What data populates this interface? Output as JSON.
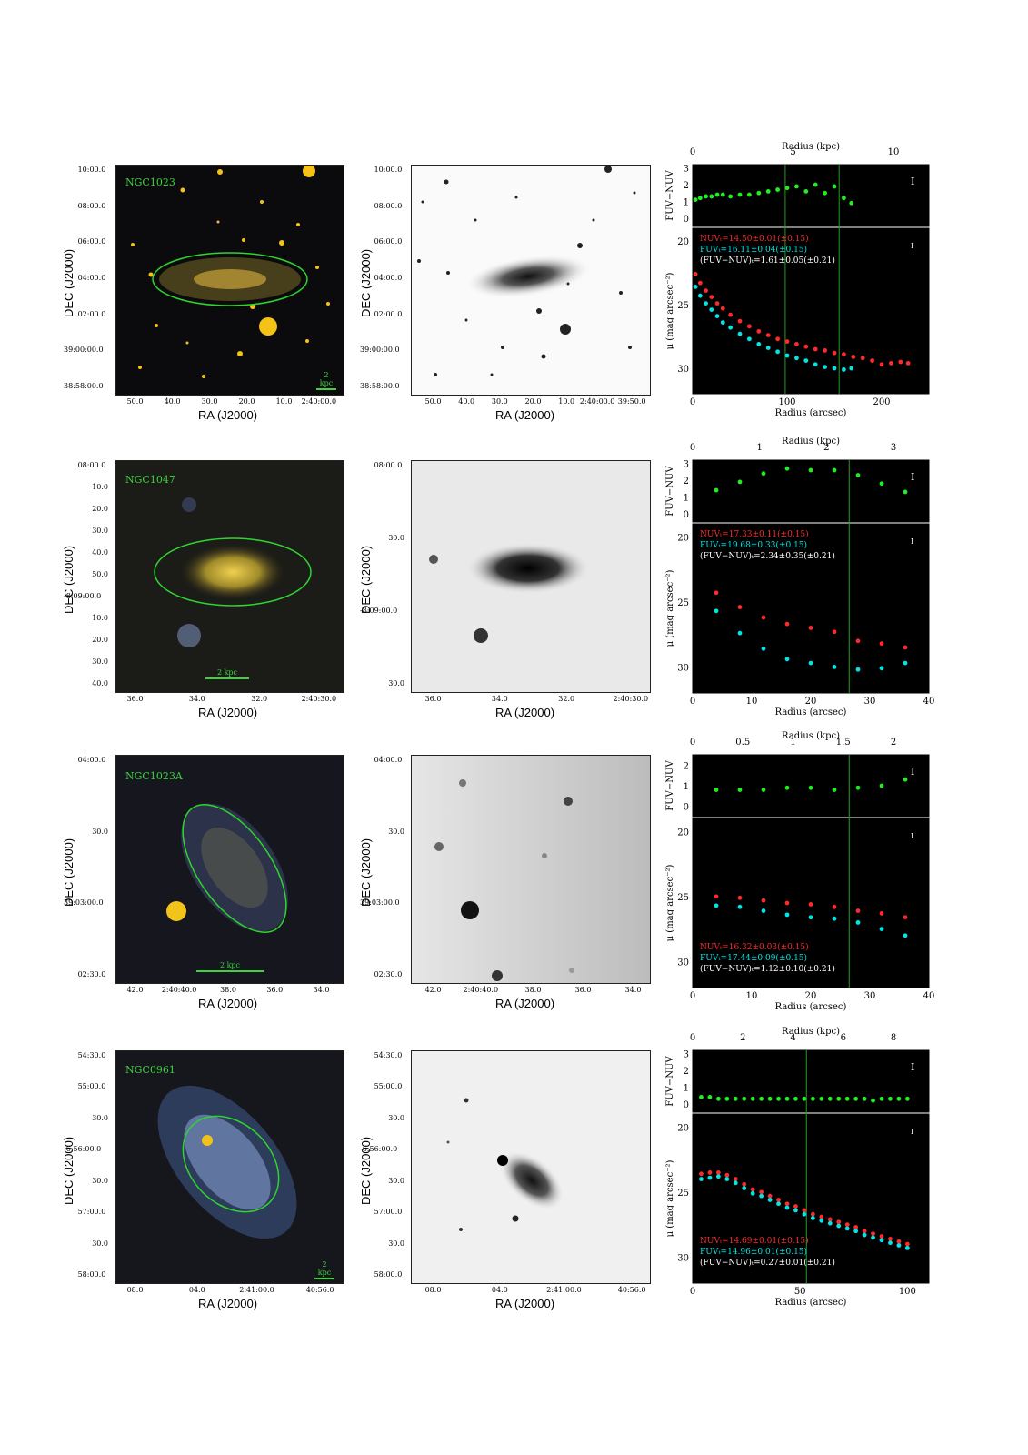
{
  "ra_label": "RA (J2000)",
  "dec_label": "DEC (J2000)",
  "color_label": "FUV−NUV",
  "mu_label": "μ (mag arcsec⁻²)",
  "radius_arcsec_label": "Radius (arcsec)",
  "radius_kpc_label": "Radius (kpc)",
  "galaxies": [
    {
      "name": "NGC1023",
      "scale_label": "2 kpc",
      "dec_ticks": [
        "10:00.0",
        "08:00.0",
        "06:00.0",
        "04:00.0",
        "02:00.0",
        "39:00:00.0",
        "38:58:00.0"
      ],
      "ra_ticks": [
        "50.0",
        "40.0",
        "30.0",
        "20.0",
        "10.0",
        "2:40:00.0"
      ],
      "ra_ticks_gray": [
        "50.0",
        "40.0",
        "30.0",
        "20.0",
        "10.0",
        "2:40:00.0",
        "39:50.0"
      ],
      "nuv_text": "NUVₜ=14.50±0.01(±0.15)",
      "fuv_text": "FUVₜ=16.11±0.04(±0.15)",
      "color_text": "(FUV−NUV)ₜ=1.61±0.05(±0.21)",
      "kpc_ticks": [
        "0",
        "5",
        "10"
      ],
      "arcsec_ticks": [
        "0",
        "100",
        "200"
      ],
      "mu_ticks": [
        "20",
        "25",
        "30"
      ],
      "col_ticks": [
        "3",
        "2",
        "1",
        "0"
      ]
    },
    {
      "name": "NGC1047",
      "scale_label": "2 kpc",
      "dec_ticks": [
        "08:00.0",
        "10.0",
        "20.0",
        "30.0",
        "40.0",
        "50.0",
        "-8:09:00.0",
        "10.0",
        "20.0",
        "30.0",
        "40.0"
      ],
      "ra_ticks": [
        "36.0",
        "34.0",
        "32.0",
        "2:40:30.0"
      ],
      "dec_ticks_gray": [
        "08:00.0",
        "30.0",
        "-8:09:00.0",
        "30.0"
      ],
      "ra_ticks_gray": [
        "36.0",
        "34.0",
        "32.0",
        "2:40:30.0"
      ],
      "nuv_text": "NUVₜ=17.33±0.11(±0.15)",
      "fuv_text": "FUVₜ=19.68±0.33(±0.15)",
      "color_text": "(FUV−NUV)ₜ=2.34±0.35(±0.21)",
      "kpc_ticks": [
        "0",
        "1",
        "2",
        "3"
      ],
      "arcsec_ticks": [
        "0",
        "10",
        "20",
        "30",
        "40"
      ],
      "mu_ticks": [
        "20",
        "25",
        "30"
      ],
      "col_ticks": [
        "3",
        "2",
        "1",
        "0"
      ]
    },
    {
      "name": "NGC1023A",
      "scale_label": "2 kpc",
      "dec_ticks": [
        "04:00.0",
        "30.0",
        "39:03:00.0",
        "02:30.0"
      ],
      "ra_ticks": [
        "42.0",
        "2:40:40.0",
        "38.0",
        "36.0",
        "34.0"
      ],
      "nuv_text": "NUVₜ=16.32±0.03(±0.15)",
      "fuv_text": "FUVₜ=17.44±0.09(±0.15)",
      "color_text": "(FUV−NUV)ₜ=1.12±0.10(±0.21)",
      "kpc_ticks": [
        "0",
        "0.5",
        "1",
        "1.5",
        "2"
      ],
      "arcsec_ticks": [
        "0",
        "10",
        "20",
        "30",
        "40"
      ],
      "mu_ticks": [
        "20",
        "25",
        "30"
      ],
      "col_ticks": [
        "2",
        "1",
        "0"
      ]
    },
    {
      "name": "NGC0961",
      "scale_label": "2 kpc",
      "dec_ticks": [
        "54:30.0",
        "55:00.0",
        "30.0",
        "-6:56:00.0",
        "30.0",
        "57:00.0",
        "30.0",
        "58:00.0"
      ],
      "ra_ticks": [
        "08.0",
        "04.0",
        "2:41:00.0",
        "40:56.0"
      ],
      "nuv_text": "NUVₜ=14.69±0.01(±0.15)",
      "fuv_text": "FUVₜ=14.96±0.01(±0.15)",
      "color_text": "(FUV−NUV)ₜ=0.27±0.01(±0.21)",
      "kpc_ticks": [
        "0",
        "2",
        "4",
        "6",
        "8"
      ],
      "arcsec_ticks": [
        "0",
        "50",
        "100"
      ],
      "mu_ticks": [
        "20",
        "25",
        "30"
      ],
      "col_ticks": [
        "3",
        "2",
        "1",
        "0"
      ]
    }
  ],
  "chart_data": [
    {
      "type": "scatter",
      "galaxy": "NGC1023",
      "xlabel": "Radius (arcsec)",
      "x2label": "Radius (kpc)",
      "xlim": [
        0,
        250
      ],
      "ylim_mu": [
        32,
        19
      ],
      "ylim_color": [
        -0.5,
        3.2
      ],
      "series": [
        {
          "name": "NUV",
          "color": "#ff2a2a",
          "x": [
            3,
            8,
            14,
            20,
            26,
            32,
            40,
            50,
            60,
            70,
            80,
            90,
            100,
            110,
            120,
            130,
            140,
            150,
            160,
            170,
            180,
            190,
            200,
            210,
            220,
            228
          ],
          "y": [
            22.6,
            23.3,
            23.9,
            24.4,
            24.9,
            25.3,
            25.8,
            26.3,
            26.7,
            27.1,
            27.4,
            27.7,
            27.9,
            28.1,
            28.3,
            28.5,
            28.6,
            28.8,
            28.9,
            29.1,
            29.2,
            29.4,
            29.7,
            29.6,
            29.5,
            29.6
          ]
        },
        {
          "name": "FUV",
          "color": "#00e5e5",
          "x": [
            3,
            8,
            14,
            20,
            26,
            32,
            40,
            50,
            60,
            70,
            80,
            90,
            100,
            110,
            120,
            130,
            140,
            150,
            160,
            168
          ],
          "y": [
            23.6,
            24.3,
            24.9,
            25.4,
            25.9,
            26.4,
            26.8,
            27.3,
            27.7,
            28.1,
            28.4,
            28.7,
            29.0,
            29.2,
            29.4,
            29.7,
            29.9,
            30.0,
            30.1,
            30.0
          ]
        },
        {
          "name": "FUV−NUV",
          "color": "#22ee22",
          "x": [
            3,
            8,
            14,
            20,
            26,
            32,
            40,
            50,
            60,
            70,
            80,
            90,
            100,
            110,
            120,
            130,
            140,
            150,
            160,
            168
          ],
          "y": [
            1.1,
            1.2,
            1.3,
            1.3,
            1.4,
            1.4,
            1.3,
            1.4,
            1.4,
            1.5,
            1.6,
            1.7,
            1.8,
            1.9,
            1.6,
            2.0,
            1.5,
            1.9,
            1.2,
            0.9
          ]
        }
      ],
      "vlines": [
        98,
        155
      ]
    },
    {
      "type": "scatter",
      "galaxy": "NGC1047",
      "xlabel": "Radius (arcsec)",
      "x2label": "Radius (kpc)",
      "xlim": [
        0,
        40
      ],
      "ylim_mu": [
        32,
        19
      ],
      "ylim_color": [
        -0.5,
        3.2
      ],
      "series": [
        {
          "name": "NUV",
          "color": "#ff2a2a",
          "x": [
            4,
            8,
            12,
            16,
            20,
            24,
            28,
            32,
            36
          ],
          "y": [
            24.3,
            25.4,
            26.2,
            26.7,
            27.0,
            27.3,
            28.0,
            28.2,
            28.5
          ]
        },
        {
          "name": "FUV",
          "color": "#00e5e5",
          "x": [
            4,
            8,
            12,
            16,
            20,
            24,
            28,
            32,
            36
          ],
          "y": [
            25.7,
            27.4,
            28.6,
            29.4,
            29.7,
            30.0,
            30.2,
            30.1,
            29.7
          ]
        },
        {
          "name": "FUV−NUV",
          "color": "#22ee22",
          "x": [
            4,
            8,
            12,
            16,
            20,
            24,
            28,
            32,
            36
          ],
          "y": [
            1.4,
            1.9,
            2.4,
            2.7,
            2.6,
            2.6,
            2.3,
            1.8,
            1.3
          ]
        }
      ],
      "vlines": [
        26.5
      ]
    },
    {
      "type": "scatter",
      "galaxy": "NGC1023A",
      "xlabel": "Radius (arcsec)",
      "x2label": "Radius (kpc)",
      "xlim": [
        0,
        40
      ],
      "ylim_mu": [
        32,
        19
      ],
      "ylim_color": [
        -0.5,
        2.5
      ],
      "series": [
        {
          "name": "NUV",
          "color": "#ff2a2a",
          "x": [
            4,
            8,
            12,
            16,
            20,
            24,
            28,
            32,
            36
          ],
          "y": [
            25.0,
            25.1,
            25.3,
            25.5,
            25.6,
            25.8,
            26.1,
            26.3,
            26.6
          ]
        },
        {
          "name": "FUV",
          "color": "#00e5e5",
          "x": [
            4,
            8,
            12,
            16,
            20,
            24,
            28,
            32,
            36
          ],
          "y": [
            25.7,
            25.8,
            26.1,
            26.4,
            26.6,
            26.7,
            27.0,
            27.5,
            28.0
          ]
        },
        {
          "name": "FUV−NUV",
          "color": "#22ee22",
          "x": [
            4,
            8,
            12,
            16,
            20,
            24,
            28,
            32,
            36
          ],
          "y": [
            0.8,
            0.8,
            0.8,
            0.9,
            0.9,
            0.8,
            0.9,
            1.0,
            1.3
          ]
        }
      ],
      "vlines": [
        26.5
      ]
    },
    {
      "type": "scatter",
      "galaxy": "NGC0961",
      "xlabel": "Radius (arcsec)",
      "x2label": "Radius (kpc)",
      "xlim": [
        0,
        110
      ],
      "ylim_mu": [
        32,
        19
      ],
      "ylim_color": [
        -0.5,
        3.2
      ],
      "series": [
        {
          "name": "NUV",
          "color": "#ff2a2a",
          "x": [
            4,
            8,
            12,
            16,
            20,
            24,
            28,
            32,
            36,
            40,
            44,
            48,
            52,
            56,
            60,
            64,
            68,
            72,
            76,
            80,
            84,
            88,
            92,
            96,
            100
          ],
          "y": [
            23.6,
            23.5,
            23.5,
            23.7,
            24.0,
            24.4,
            24.8,
            25.0,
            25.3,
            25.6,
            25.9,
            26.1,
            26.4,
            26.7,
            26.9,
            27.1,
            27.3,
            27.5,
            27.7,
            28.0,
            28.2,
            28.4,
            28.6,
            28.8,
            29.0
          ]
        },
        {
          "name": "FUV",
          "color": "#00e5e5",
          "x": [
            4,
            8,
            12,
            16,
            20,
            24,
            28,
            32,
            36,
            40,
            44,
            48,
            52,
            56,
            60,
            64,
            68,
            72,
            76,
            80,
            84,
            88,
            92,
            96,
            100
          ],
          "y": [
            24.0,
            23.9,
            23.8,
            24.0,
            24.3,
            24.7,
            25.1,
            25.3,
            25.6,
            25.9,
            26.2,
            26.4,
            26.7,
            27.0,
            27.2,
            27.4,
            27.6,
            27.8,
            28.0,
            28.3,
            28.5,
            28.7,
            28.9,
            29.1,
            29.3
          ]
        },
        {
          "name": "FUV−NUV",
          "color": "#22ee22",
          "x": [
            4,
            8,
            12,
            16,
            20,
            24,
            28,
            32,
            36,
            40,
            44,
            48,
            52,
            56,
            60,
            64,
            68,
            72,
            76,
            80,
            84,
            88,
            92,
            96,
            100
          ],
          "y": [
            0.4,
            0.4,
            0.3,
            0.3,
            0.3,
            0.3,
            0.3,
            0.3,
            0.3,
            0.3,
            0.3,
            0.3,
            0.3,
            0.3,
            0.3,
            0.3,
            0.3,
            0.3,
            0.3,
            0.3,
            0.2,
            0.3,
            0.3,
            0.3,
            0.3
          ]
        }
      ],
      "vlines": [
        53
      ]
    }
  ]
}
